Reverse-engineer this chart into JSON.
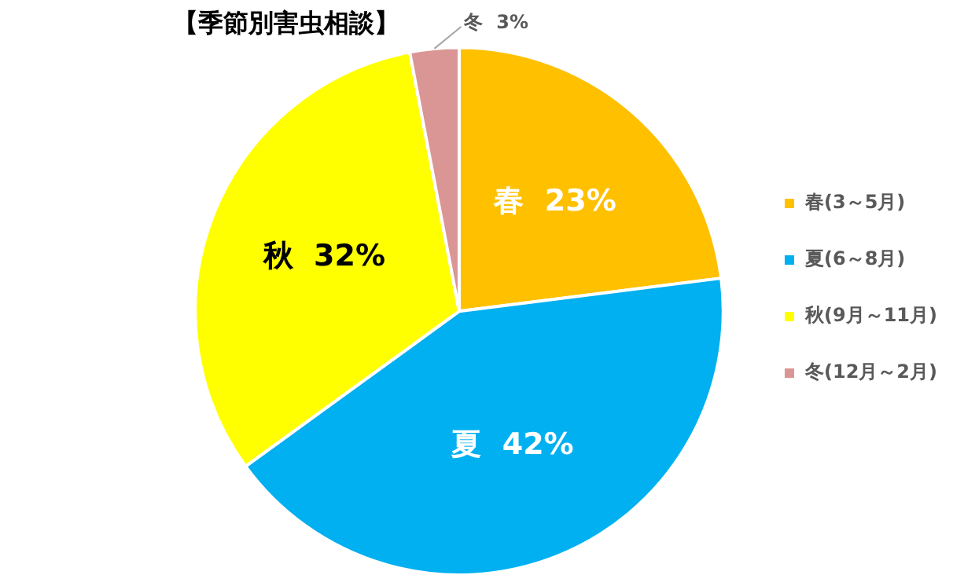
{
  "chart_data": {
    "type": "pie",
    "title": "【季節別害虫相談】",
    "categories": [
      "春(3～5月)",
      "夏(6～8月)",
      "秋(9月～11月)",
      "冬(12月～2月)"
    ],
    "values": [
      23,
      42,
      32,
      3
    ],
    "value_labels": [
      "春  23%",
      "夏  42%",
      "秋  32%",
      "冬  3%"
    ],
    "colors": [
      "#ffc000",
      "#00b0f0",
      "#ffff00",
      "#da9694"
    ],
    "legend": "right"
  }
}
